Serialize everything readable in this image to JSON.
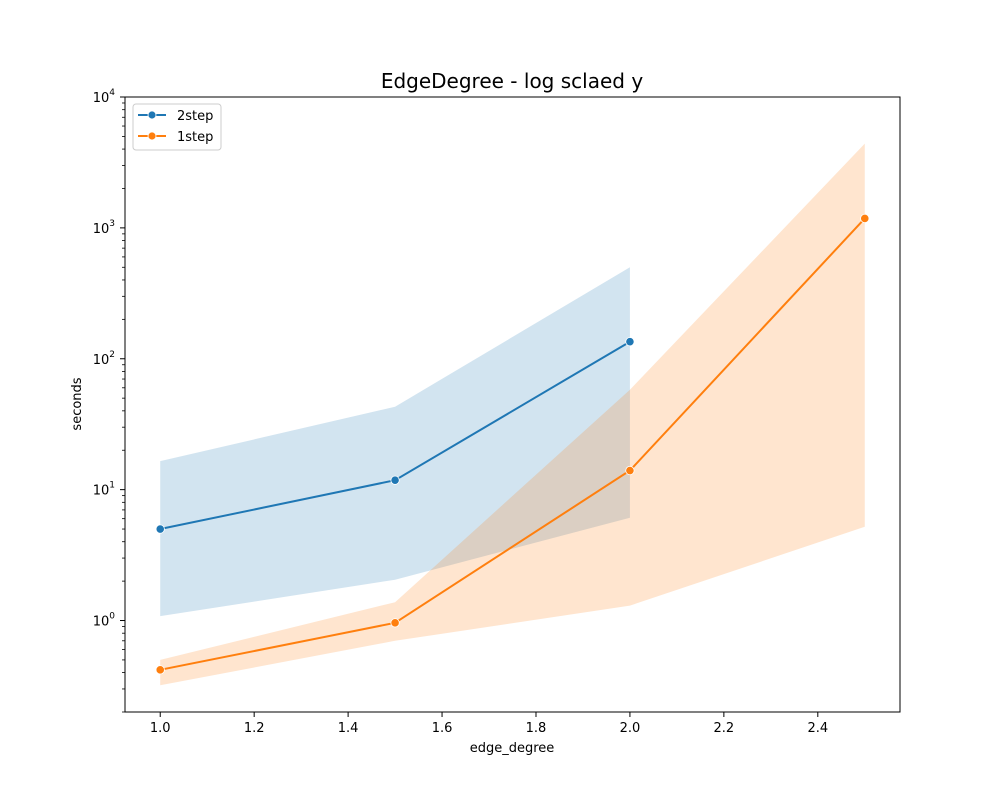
{
  "chart_data": {
    "type": "line",
    "title": "EdgeDegree - log sclaed y",
    "xlabel": "edge_degree",
    "ylabel": "seconds",
    "xlim": [
      0.925,
      2.575
    ],
    "ylim": [
      0.2,
      10000
    ],
    "yscale": "log",
    "xticks": [
      1.0,
      1.2,
      1.4,
      1.6,
      1.8,
      2.0,
      2.2,
      2.4
    ],
    "xtick_labels": [
      "1.0",
      "1.2",
      "1.4",
      "1.6",
      "1.8",
      "2.0",
      "2.2",
      "2.4"
    ],
    "yticks": [
      {
        "value": 1,
        "base": "10",
        "exp": "0"
      },
      {
        "value": 10,
        "base": "10",
        "exp": "1"
      },
      {
        "value": 100,
        "base": "10",
        "exp": "2"
      },
      {
        "value": 1000,
        "base": "10",
        "exp": "3"
      },
      {
        "value": 10000,
        "base": "10",
        "exp": "4"
      }
    ],
    "grid": false,
    "legend": "top-left",
    "series": [
      {
        "name": "2step",
        "color": "#1f77b4",
        "x": [
          1.0,
          1.5,
          2.0
        ],
        "y": [
          5.0,
          11.8,
          135
        ],
        "ci_low": [
          1.08,
          2.05,
          6.1
        ],
        "ci_high": [
          16.5,
          43,
          500
        ]
      },
      {
        "name": "1step",
        "color": "#ff7f0e",
        "x": [
          1.0,
          1.5,
          2.0,
          2.5
        ],
        "y": [
          0.42,
          0.96,
          14,
          1180
        ],
        "ci_low": [
          0.32,
          0.7,
          1.3,
          5.2
        ],
        "ci_high": [
          0.5,
          1.38,
          58,
          4400
        ]
      }
    ]
  }
}
